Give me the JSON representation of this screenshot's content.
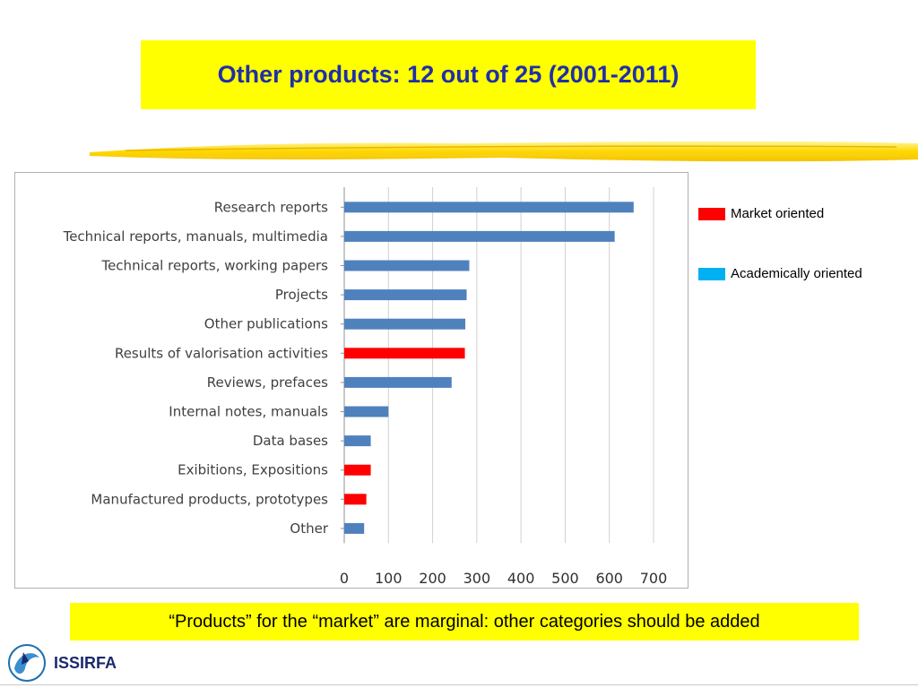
{
  "title": "Other products: 12 out of 25 (2001-2011)",
  "legend": [
    {
      "label": "Market oriented",
      "color": "#ff0000"
    },
    {
      "label": "Academically oriented",
      "color": "#00b0f0"
    }
  ],
  "note": "“Products” for the “market” are marginal: other categories should be added",
  "logo": {
    "text": "ISSIRFA"
  },
  "chart_data": {
    "type": "bar",
    "orientation": "horizontal",
    "categories": [
      "Research reports",
      "Technical reports, manuals,  multimedia",
      "Technical reports, working papers",
      "Projects",
      "Other publications",
      "Results of valorisation  activities",
      "Reviews, prefaces",
      "Internal notes, manuals",
      "Data bases",
      "Exibitions, Expositions",
      "Manufactured products, prototypes",
      "Other"
    ],
    "values": [
      655,
      612,
      283,
      277,
      274,
      273,
      243,
      100,
      60,
      60,
      50,
      45
    ],
    "bar_colors": [
      "#4f81bd",
      "#4f81bd",
      "#4f81bd",
      "#4f81bd",
      "#4f81bd",
      "#ff0000",
      "#4f81bd",
      "#4f81bd",
      "#4f81bd",
      "#ff0000",
      "#ff0000",
      "#4f81bd"
    ],
    "xlim": [
      0,
      700
    ],
    "xticks": [
      0,
      100,
      200,
      300,
      400,
      500,
      600,
      700
    ],
    "grid": "vertical"
  }
}
